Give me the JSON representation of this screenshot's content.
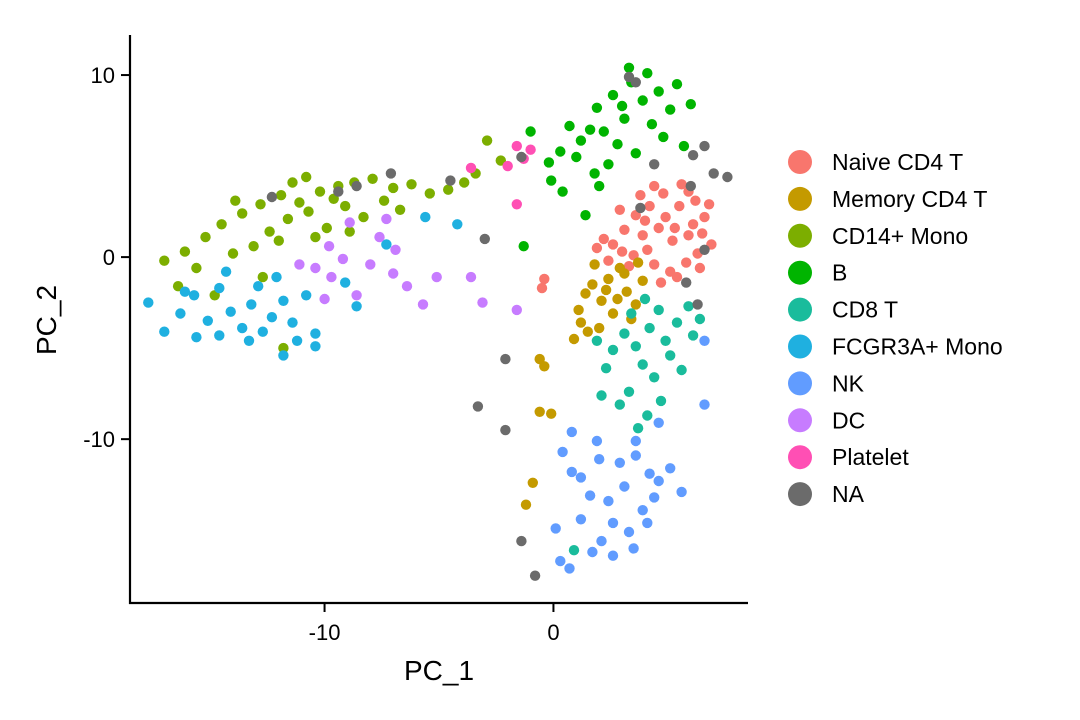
{
  "chart_data": {
    "type": "scatter",
    "title": "",
    "xlabel": "PC_1",
    "ylabel": "PC_2",
    "xlim": [
      -18.5,
      8.5
    ],
    "ylim": [
      -19,
      12.2
    ],
    "x_ticks": [
      -10,
      0
    ],
    "x_tick_labels": [
      "-10",
      "0"
    ],
    "y_ticks": [
      10,
      0,
      -10
    ],
    "y_tick_labels": [
      "10",
      "0",
      "-10"
    ],
    "grid": false,
    "legend_position": "right",
    "series": [
      {
        "name": "Naive CD4 T",
        "color": "#F8766D",
        "points": [
          [
            6.2,
            3.1
          ],
          [
            5.6,
            4.0
          ],
          [
            4.8,
            3.5
          ],
          [
            4.2,
            2.8
          ],
          [
            3.9,
            1.2
          ],
          [
            3.1,
            1.5
          ],
          [
            2.6,
            0.7
          ],
          [
            2.4,
            -0.2
          ],
          [
            3.5,
            0.1
          ],
          [
            4.6,
            1.6
          ],
          [
            5.2,
            0.9
          ],
          [
            5.9,
            1.2
          ],
          [
            6.6,
            2.2
          ],
          [
            6.9,
            0.7
          ],
          [
            6.4,
            -0.6
          ],
          [
            5.8,
            -0.3
          ],
          [
            5.1,
            -0.8
          ],
          [
            4.4,
            -0.4
          ],
          [
            3.6,
            2.3
          ],
          [
            2.9,
            2.6
          ],
          [
            4.9,
            2.2
          ],
          [
            5.5,
            2.8
          ],
          [
            6.1,
            1.8
          ],
          [
            4.1,
            0.4
          ],
          [
            3.3,
            -0.5
          ],
          [
            6.8,
            2.9
          ],
          [
            3.8,
            3.4
          ],
          [
            2.2,
            1.0
          ],
          [
            6.3,
            0.2
          ],
          [
            5.4,
            -1.1
          ],
          [
            4.7,
            -1.4
          ],
          [
            5.9,
            3.6
          ],
          [
            4.4,
            3.9
          ],
          [
            3.0,
            0.3
          ],
          [
            1.9,
            0.5
          ],
          [
            6.5,
            1.3
          ],
          [
            5.3,
            1.6
          ],
          [
            4.0,
            2.0
          ],
          [
            -0.4,
            -1.2
          ],
          [
            -0.5,
            -1.7
          ]
        ]
      },
      {
        "name": "Memory CD4 T",
        "color": "#C49A00",
        "points": [
          [
            2.4,
            -1.2
          ],
          [
            2.9,
            -0.6
          ],
          [
            3.2,
            -1.9
          ],
          [
            2.1,
            -2.4
          ],
          [
            3.6,
            -2.6
          ],
          [
            1.7,
            -1.5
          ],
          [
            2.6,
            -3.1
          ],
          [
            3.9,
            -1.3
          ],
          [
            1.8,
            -0.4
          ],
          [
            2.3,
            -1.8
          ],
          [
            3.1,
            -0.9
          ],
          [
            1.4,
            -2.0
          ],
          [
            2.8,
            -2.3
          ],
          [
            3.4,
            -3.4
          ],
          [
            1.2,
            -3.6
          ],
          [
            0.9,
            -4.5
          ],
          [
            1.5,
            -4.1
          ],
          [
            2.0,
            -3.9
          ],
          [
            -0.6,
            -5.6
          ],
          [
            -0.4,
            -6.0
          ],
          [
            -0.6,
            -8.5
          ],
          [
            -0.1,
            -8.6
          ],
          [
            -0.9,
            -12.4
          ],
          [
            -1.2,
            -13.6
          ],
          [
            3.7,
            -0.3
          ],
          [
            1.1,
            -2.9
          ]
        ]
      },
      {
        "name": "CD14+ Mono",
        "color": "#7CAE00",
        "points": [
          [
            -17.0,
            -0.2
          ],
          [
            -16.1,
            0.3
          ],
          [
            -15.2,
            1.1
          ],
          [
            -14.5,
            1.8
          ],
          [
            -13.6,
            2.4
          ],
          [
            -12.8,
            2.9
          ],
          [
            -11.9,
            3.4
          ],
          [
            -11.1,
            3.0
          ],
          [
            -10.2,
            3.6
          ],
          [
            -9.4,
            3.9
          ],
          [
            -8.7,
            4.1
          ],
          [
            -7.9,
            4.3
          ],
          [
            -7.0,
            3.8
          ],
          [
            -6.2,
            4.0
          ],
          [
            -5.4,
            3.5
          ],
          [
            -4.6,
            3.7
          ],
          [
            -12.4,
            1.4
          ],
          [
            -11.6,
            2.1
          ],
          [
            -10.7,
            2.5
          ],
          [
            -9.9,
            1.6
          ],
          [
            -9.1,
            2.8
          ],
          [
            -8.3,
            2.2
          ],
          [
            -13.1,
            0.6
          ],
          [
            -14.0,
            0.2
          ],
          [
            -15.6,
            -0.6
          ],
          [
            -12.0,
            0.9
          ],
          [
            -10.4,
            1.1
          ],
          [
            -8.9,
            1.4
          ],
          [
            -7.4,
            3.1
          ],
          [
            -6.7,
            2.6
          ],
          [
            -11.4,
            4.1
          ],
          [
            -13.9,
            3.1
          ],
          [
            -16.4,
            -1.6
          ],
          [
            -14.8,
            -2.1
          ],
          [
            -12.7,
            -1.1
          ],
          [
            -11.8,
            -5.0
          ],
          [
            -3.4,
            4.6
          ],
          [
            -2.9,
            6.4
          ],
          [
            -2.3,
            5.3
          ],
          [
            -3.9,
            4.1
          ],
          [
            -9.6,
            3.2
          ],
          [
            -10.8,
            4.4
          ]
        ]
      },
      {
        "name": "B",
        "color": "#00B400",
        "points": [
          [
            3.4,
            9.6
          ],
          [
            2.6,
            8.9
          ],
          [
            3.9,
            8.6
          ],
          [
            4.6,
            9.1
          ],
          [
            1.9,
            8.2
          ],
          [
            3.1,
            7.6
          ],
          [
            2.2,
            6.9
          ],
          [
            4.3,
            7.3
          ],
          [
            5.1,
            8.1
          ],
          [
            1.6,
            7.0
          ],
          [
            2.8,
            6.2
          ],
          [
            3.6,
            5.7
          ],
          [
            1.2,
            6.4
          ],
          [
            4.8,
            6.6
          ],
          [
            3.3,
            10.4
          ],
          [
            4.1,
            10.1
          ],
          [
            0.7,
            7.2
          ],
          [
            1.0,
            5.5
          ],
          [
            1.8,
            4.6
          ],
          [
            2.4,
            5.1
          ],
          [
            0.3,
            5.8
          ],
          [
            -0.2,
            5.2
          ],
          [
            0.4,
            3.6
          ],
          [
            5.4,
            9.5
          ],
          [
            6.0,
            8.4
          ],
          [
            3.0,
            8.3
          ],
          [
            2.0,
            3.9
          ],
          [
            1.4,
            2.3
          ],
          [
            -1.0,
            6.9
          ],
          [
            -0.1,
            4.2
          ],
          [
            5.7,
            6.1
          ],
          [
            -1.3,
            0.6
          ]
        ]
      },
      {
        "name": "CD8 T",
        "color": "#1ABC9C",
        "points": [
          [
            4.2,
            -3.9
          ],
          [
            4.9,
            -4.6
          ],
          [
            3.6,
            -4.9
          ],
          [
            5.4,
            -3.6
          ],
          [
            4.6,
            -2.9
          ],
          [
            3.1,
            -4.2
          ],
          [
            2.6,
            -5.1
          ],
          [
            3.9,
            -5.9
          ],
          [
            4.4,
            -6.6
          ],
          [
            3.3,
            -7.4
          ],
          [
            2.9,
            -8.1
          ],
          [
            4.1,
            -8.7
          ],
          [
            5.9,
            -2.7
          ],
          [
            6.4,
            -3.4
          ],
          [
            5.1,
            -5.4
          ],
          [
            4.7,
            -7.9
          ],
          [
            3.7,
            -9.4
          ],
          [
            2.3,
            -6.1
          ],
          [
            2.1,
            -7.6
          ],
          [
            6.1,
            -4.3
          ],
          [
            3.4,
            -3.1
          ],
          [
            4.0,
            -2.3
          ],
          [
            1.9,
            -4.6
          ],
          [
            5.6,
            -6.2
          ],
          [
            0.9,
            -16.1
          ]
        ]
      },
      {
        "name": "FCGR3A+ Mono",
        "color": "#1FB0E0",
        "points": [
          [
            -17.7,
            -2.5
          ],
          [
            -17.0,
            -4.1
          ],
          [
            -16.3,
            -3.1
          ],
          [
            -15.7,
            -2.1
          ],
          [
            -15.1,
            -3.5
          ],
          [
            -14.6,
            -4.3
          ],
          [
            -14.1,
            -3.0
          ],
          [
            -13.6,
            -3.9
          ],
          [
            -13.2,
            -2.6
          ],
          [
            -12.7,
            -4.1
          ],
          [
            -12.3,
            -3.3
          ],
          [
            -11.8,
            -2.4
          ],
          [
            -11.4,
            -3.6
          ],
          [
            -10.8,
            -2.1
          ],
          [
            -10.4,
            -4.2
          ],
          [
            -10.4,
            -4.9
          ],
          [
            -12.9,
            -1.6
          ],
          [
            -14.6,
            -1.7
          ],
          [
            -16.1,
            -1.9
          ],
          [
            -13.3,
            -4.6
          ],
          [
            -11.8,
            -5.4
          ],
          [
            -9.1,
            -1.4
          ],
          [
            -8.6,
            -2.7
          ],
          [
            -7.3,
            0.7
          ],
          [
            -5.6,
            2.2
          ],
          [
            -4.2,
            1.8
          ],
          [
            -14.3,
            -0.8
          ],
          [
            -12.1,
            -1.1
          ],
          [
            -15.6,
            -4.4
          ],
          [
            -11.2,
            -4.6
          ]
        ]
      },
      {
        "name": "NK",
        "color": "#619CFF",
        "points": [
          [
            3.6,
            -10.1
          ],
          [
            2.9,
            -11.3
          ],
          [
            4.2,
            -11.9
          ],
          [
            3.1,
            -12.6
          ],
          [
            2.4,
            -13.4
          ],
          [
            3.9,
            -13.9
          ],
          [
            2.6,
            -14.6
          ],
          [
            3.3,
            -15.1
          ],
          [
            2.1,
            -15.6
          ],
          [
            1.6,
            -13.1
          ],
          [
            1.2,
            -12.1
          ],
          [
            2.0,
            -11.1
          ],
          [
            3.6,
            -10.9
          ],
          [
            4.6,
            -12.3
          ],
          [
            4.1,
            -14.6
          ],
          [
            1.7,
            -16.2
          ],
          [
            2.6,
            -16.4
          ],
          [
            1.9,
            -10.1
          ],
          [
            0.4,
            -10.7
          ],
          [
            0.8,
            -11.8
          ],
          [
            0.1,
            -14.9
          ],
          [
            0.3,
            -16.7
          ],
          [
            0.7,
            -17.1
          ],
          [
            1.2,
            -14.4
          ],
          [
            5.1,
            -11.6
          ],
          [
            5.6,
            -12.9
          ],
          [
            6.6,
            -4.6
          ],
          [
            6.6,
            -8.1
          ],
          [
            4.6,
            -9.1
          ],
          [
            0.8,
            -9.6
          ],
          [
            3.5,
            -16.0
          ],
          [
            4.4,
            -13.2
          ]
        ]
      },
      {
        "name": "DC",
        "color": "#C77CFF",
        "points": [
          [
            -10.4,
            -0.6
          ],
          [
            -9.7,
            -1.1
          ],
          [
            -9.2,
            -0.1
          ],
          [
            -8.6,
            -2.1
          ],
          [
            -8.0,
            -0.4
          ],
          [
            -7.6,
            1.1
          ],
          [
            -7.0,
            -0.9
          ],
          [
            -6.4,
            -1.6
          ],
          [
            -5.7,
            -2.6
          ],
          [
            -5.1,
            -1.1
          ],
          [
            -8.9,
            1.9
          ],
          [
            -9.8,
            0.6
          ],
          [
            -11.1,
            -0.4
          ],
          [
            -3.6,
            -1.1
          ],
          [
            -3.1,
            -2.5
          ],
          [
            -1.6,
            -2.9
          ],
          [
            -7.3,
            2.1
          ],
          [
            -10.0,
            -2.3
          ],
          [
            -6.9,
            0.4
          ]
        ]
      },
      {
        "name": "Platelet",
        "color": "#FF4FB4",
        "points": [
          [
            -3.6,
            4.9
          ],
          [
            -2.0,
            5.0
          ],
          [
            -1.6,
            6.1
          ],
          [
            -1.3,
            5.4
          ],
          [
            -1.0,
            5.9
          ],
          [
            -1.6,
            2.9
          ]
        ]
      },
      {
        "name": "NA",
        "color": "#6B6B6B",
        "points": [
          [
            3.3,
            9.9
          ],
          [
            3.6,
            9.6
          ],
          [
            -7.1,
            4.6
          ],
          [
            -8.6,
            3.9
          ],
          [
            -3.0,
            1.0
          ],
          [
            -2.1,
            -5.6
          ],
          [
            -3.3,
            -8.2
          ],
          [
            -2.1,
            -9.5
          ],
          [
            -1.4,
            -15.6
          ],
          [
            -0.8,
            -17.5
          ],
          [
            6.1,
            5.6
          ],
          [
            6.6,
            6.1
          ],
          [
            7.0,
            4.6
          ],
          [
            7.6,
            4.4
          ],
          [
            6.0,
            3.9
          ],
          [
            6.6,
            0.4
          ],
          [
            5.8,
            -1.4
          ],
          [
            6.3,
            -2.6
          ],
          [
            4.4,
            5.1
          ],
          [
            3.8,
            2.7
          ],
          [
            -1.4,
            5.5
          ],
          [
            -9.4,
            3.6
          ],
          [
            -4.5,
            4.2
          ],
          [
            -12.3,
            3.3
          ]
        ]
      }
    ]
  }
}
